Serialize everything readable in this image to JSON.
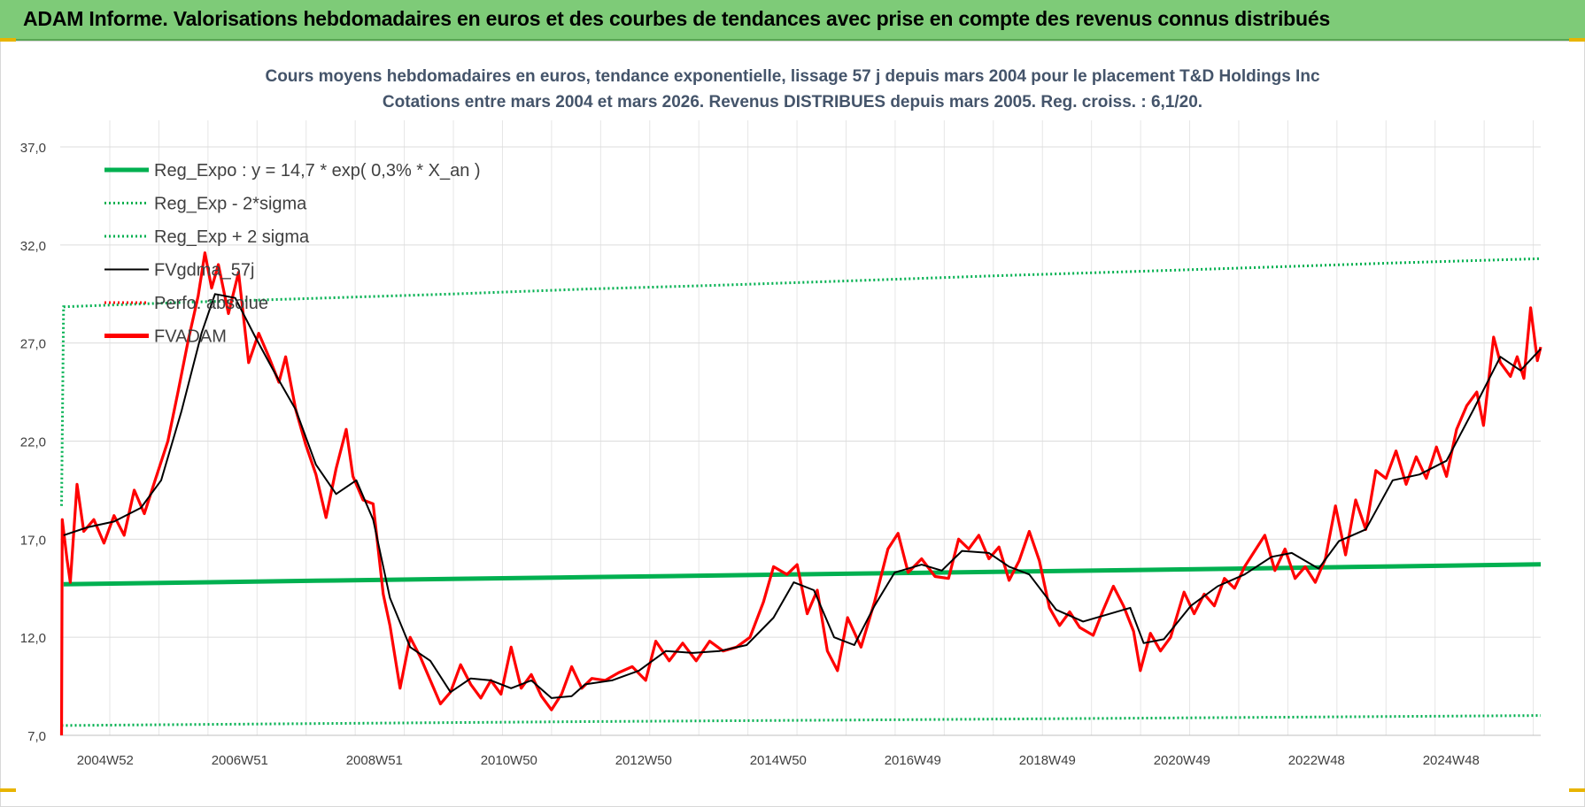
{
  "banner": {
    "title": "ADAM Informe. Valorisations hebdomadaires en euros et des courbes de tendances avec prise en compte des revenus connus distribués"
  },
  "chart_data": {
    "type": "line",
    "title": "Cours moyens hebdomadaires en euros, tendance exponentielle, lissage 57 j depuis mars 2004 pour le placement T&D Holdings Inc",
    "subtitle": "Cotations entre mars 2004 et mars 2026. Revenus DISTRIBUES depuis mars 2005. Reg. croiss. : 6,1/20.",
    "xlabel": "",
    "ylabel": "",
    "ylim": [
      7.0,
      37.0
    ],
    "y_ticks": [
      "7,0",
      "12,0",
      "17,0",
      "22,0",
      "27,0",
      "32,0",
      "37,0"
    ],
    "x_range": [
      2004.2,
      2026.2
    ],
    "x_ticks": [
      {
        "label": "2004W52",
        "x": 2005.0
      },
      {
        "label": "2006W51",
        "x": 2007.0
      },
      {
        "label": "2008W51",
        "x": 2009.0
      },
      {
        "label": "2010W50",
        "x": 2011.0
      },
      {
        "label": "2012W50",
        "x": 2013.0
      },
      {
        "label": "2014W50",
        "x": 2015.0
      },
      {
        "label": "2016W49",
        "x": 2017.0
      },
      {
        "label": "2018W49",
        "x": 2019.0
      },
      {
        "label": "2020W49",
        "x": 2021.0
      },
      {
        "label": "2022W48",
        "x": 2023.0
      },
      {
        "label": "2024W48",
        "x": 2025.0
      }
    ],
    "grid": true,
    "legend_position": "top-left",
    "series": [
      {
        "name": "Reg_Expo : y = 14,7 * exp( 0,3% *  X_an )",
        "style": "solid-thick",
        "color": "#00b050",
        "points": [
          [
            2004.25,
            14.7
          ],
          [
            2008,
            14.88
          ],
          [
            2012,
            15.06
          ],
          [
            2016,
            15.24
          ],
          [
            2020,
            15.42
          ],
          [
            2024,
            15.61
          ],
          [
            2026.2,
            15.72
          ]
        ]
      },
      {
        "name": "Reg_Exp - 2*sigma",
        "style": "dotted",
        "color": "#00b050",
        "points": [
          [
            2004.22,
            7.5
          ],
          [
            2008,
            7.6
          ],
          [
            2012,
            7.7
          ],
          [
            2016,
            7.78
          ],
          [
            2020,
            7.87
          ],
          [
            2024,
            7.96
          ],
          [
            2026.2,
            8.01
          ]
        ]
      },
      {
        "name": "Reg_Exp + 2 sigma",
        "style": "dotted",
        "color": "#00b050",
        "points": [
          [
            2004.22,
            18.7
          ],
          [
            2004.25,
            28.85
          ],
          [
            2006,
            29.07
          ],
          [
            2008,
            29.28
          ],
          [
            2010,
            29.5
          ],
          [
            2012,
            29.75
          ],
          [
            2014,
            29.95
          ],
          [
            2016,
            30.18
          ],
          [
            2018,
            30.42
          ],
          [
            2020,
            30.63
          ],
          [
            2022,
            30.85
          ],
          [
            2024,
            31.08
          ],
          [
            2026.2,
            31.3
          ]
        ]
      },
      {
        "name": "FVgdma_57j",
        "style": "solid",
        "color": "#000000",
        "points": [
          [
            2004.25,
            17.2
          ],
          [
            2004.6,
            17.6
          ],
          [
            2005.0,
            17.9
          ],
          [
            2005.4,
            18.6
          ],
          [
            2005.7,
            20.0
          ],
          [
            2006.0,
            23.5
          ],
          [
            2006.3,
            27.5
          ],
          [
            2006.5,
            29.5
          ],
          [
            2006.8,
            29.3
          ],
          [
            2007.1,
            27.3
          ],
          [
            2007.4,
            25.4
          ],
          [
            2007.7,
            23.6
          ],
          [
            2008.0,
            20.8
          ],
          [
            2008.3,
            19.3
          ],
          [
            2008.6,
            20.0
          ],
          [
            2008.85,
            18.0
          ],
          [
            2009.1,
            14.0
          ],
          [
            2009.4,
            11.5
          ],
          [
            2009.7,
            10.8
          ],
          [
            2010.0,
            9.2
          ],
          [
            2010.3,
            9.9
          ],
          [
            2010.6,
            9.8
          ],
          [
            2010.9,
            9.4
          ],
          [
            2011.2,
            9.8
          ],
          [
            2011.5,
            8.9
          ],
          [
            2011.8,
            9.0
          ],
          [
            2012.0,
            9.6
          ],
          [
            2012.4,
            9.8
          ],
          [
            2012.8,
            10.3
          ],
          [
            2013.2,
            11.3
          ],
          [
            2013.6,
            11.2
          ],
          [
            2014.0,
            11.3
          ],
          [
            2014.4,
            11.6
          ],
          [
            2014.8,
            13.0
          ],
          [
            2015.1,
            14.8
          ],
          [
            2015.4,
            14.4
          ],
          [
            2015.7,
            12.0
          ],
          [
            2016.0,
            11.6
          ],
          [
            2016.3,
            13.6
          ],
          [
            2016.6,
            15.3
          ],
          [
            2017.0,
            15.7
          ],
          [
            2017.3,
            15.4
          ],
          [
            2017.6,
            16.4
          ],
          [
            2018.0,
            16.3
          ],
          [
            2018.3,
            15.6
          ],
          [
            2018.6,
            15.2
          ],
          [
            2019.0,
            13.4
          ],
          [
            2019.4,
            12.8
          ],
          [
            2019.8,
            13.2
          ],
          [
            2020.1,
            13.5
          ],
          [
            2020.3,
            11.7
          ],
          [
            2020.6,
            11.9
          ],
          [
            2021.0,
            13.6
          ],
          [
            2021.4,
            14.6
          ],
          [
            2021.8,
            15.2
          ],
          [
            2022.2,
            16.1
          ],
          [
            2022.5,
            16.3
          ],
          [
            2022.9,
            15.5
          ],
          [
            2023.2,
            16.9
          ],
          [
            2023.6,
            17.5
          ],
          [
            2024.0,
            20.0
          ],
          [
            2024.4,
            20.3
          ],
          [
            2024.8,
            21.0
          ],
          [
            2025.2,
            23.6
          ],
          [
            2025.6,
            26.3
          ],
          [
            2025.9,
            25.6
          ],
          [
            2026.2,
            26.7
          ]
        ]
      },
      {
        "name": "Perfo. absolue",
        "style": "dotted",
        "color": "#ff0000",
        "points": []
      },
      {
        "name": "FVADAM",
        "style": "solid-thick",
        "color": "#ff0000",
        "points": [
          [
            2004.22,
            7.0
          ],
          [
            2004.23,
            18.0
          ],
          [
            2004.3,
            16.0
          ],
          [
            2004.35,
            14.8
          ],
          [
            2004.45,
            19.8
          ],
          [
            2004.55,
            17.4
          ],
          [
            2004.7,
            18.0
          ],
          [
            2004.85,
            16.8
          ],
          [
            2005.0,
            18.2
          ],
          [
            2005.15,
            17.2
          ],
          [
            2005.3,
            19.5
          ],
          [
            2005.45,
            18.3
          ],
          [
            2005.6,
            19.9
          ],
          [
            2005.8,
            22.0
          ],
          [
            2005.95,
            24.5
          ],
          [
            2006.1,
            27.1
          ],
          [
            2006.25,
            29.4
          ],
          [
            2006.35,
            31.6
          ],
          [
            2006.45,
            29.8
          ],
          [
            2006.55,
            31.0
          ],
          [
            2006.7,
            28.5
          ],
          [
            2006.85,
            30.6
          ],
          [
            2007.0,
            26.0
          ],
          [
            2007.15,
            27.5
          ],
          [
            2007.3,
            26.3
          ],
          [
            2007.45,
            25.0
          ],
          [
            2007.55,
            26.3
          ],
          [
            2007.7,
            23.6
          ],
          [
            2007.85,
            21.8
          ],
          [
            2008.0,
            20.3
          ],
          [
            2008.15,
            18.1
          ],
          [
            2008.3,
            20.6
          ],
          [
            2008.45,
            22.6
          ],
          [
            2008.55,
            20.2
          ],
          [
            2008.7,
            19.0
          ],
          [
            2008.85,
            18.8
          ],
          [
            2009.0,
            14.2
          ],
          [
            2009.1,
            12.6
          ],
          [
            2009.25,
            9.4
          ],
          [
            2009.4,
            12.0
          ],
          [
            2009.55,
            11.0
          ],
          [
            2009.7,
            9.8
          ],
          [
            2009.85,
            8.6
          ],
          [
            2010.0,
            9.2
          ],
          [
            2010.15,
            10.6
          ],
          [
            2010.3,
            9.6
          ],
          [
            2010.45,
            8.9
          ],
          [
            2010.6,
            9.8
          ],
          [
            2010.75,
            9.1
          ],
          [
            2010.9,
            11.5
          ],
          [
            2011.05,
            9.4
          ],
          [
            2011.2,
            10.1
          ],
          [
            2011.35,
            9.0
          ],
          [
            2011.5,
            8.3
          ],
          [
            2011.65,
            9.1
          ],
          [
            2011.8,
            10.5
          ],
          [
            2011.95,
            9.4
          ],
          [
            2012.1,
            9.9
          ],
          [
            2012.3,
            9.8
          ],
          [
            2012.5,
            10.2
          ],
          [
            2012.7,
            10.5
          ],
          [
            2012.9,
            9.8
          ],
          [
            2013.05,
            11.8
          ],
          [
            2013.25,
            10.8
          ],
          [
            2013.45,
            11.7
          ],
          [
            2013.65,
            10.8
          ],
          [
            2013.85,
            11.8
          ],
          [
            2014.05,
            11.3
          ],
          [
            2014.25,
            11.5
          ],
          [
            2014.45,
            12.0
          ],
          [
            2014.65,
            13.8
          ],
          [
            2014.8,
            15.6
          ],
          [
            2015.0,
            15.2
          ],
          [
            2015.15,
            15.7
          ],
          [
            2015.3,
            13.2
          ],
          [
            2015.45,
            14.4
          ],
          [
            2015.6,
            11.3
          ],
          [
            2015.75,
            10.3
          ],
          [
            2015.9,
            13.0
          ],
          [
            2016.1,
            11.5
          ],
          [
            2016.3,
            13.8
          ],
          [
            2016.5,
            16.5
          ],
          [
            2016.65,
            17.3
          ],
          [
            2016.8,
            15.3
          ],
          [
            2017.0,
            16.0
          ],
          [
            2017.2,
            15.1
          ],
          [
            2017.4,
            15.0
          ],
          [
            2017.55,
            17.0
          ],
          [
            2017.7,
            16.5
          ],
          [
            2017.85,
            17.2
          ],
          [
            2018.0,
            16.0
          ],
          [
            2018.15,
            16.6
          ],
          [
            2018.3,
            14.9
          ],
          [
            2018.45,
            15.9
          ],
          [
            2018.6,
            17.4
          ],
          [
            2018.75,
            15.9
          ],
          [
            2018.9,
            13.5
          ],
          [
            2019.05,
            12.6
          ],
          [
            2019.2,
            13.3
          ],
          [
            2019.35,
            12.5
          ],
          [
            2019.55,
            12.1
          ],
          [
            2019.7,
            13.4
          ],
          [
            2019.85,
            14.6
          ],
          [
            2020.0,
            13.6
          ],
          [
            2020.15,
            12.3
          ],
          [
            2020.25,
            10.3
          ],
          [
            2020.4,
            12.2
          ],
          [
            2020.55,
            11.3
          ],
          [
            2020.7,
            12.0
          ],
          [
            2020.9,
            14.3
          ],
          [
            2021.05,
            13.2
          ],
          [
            2021.2,
            14.2
          ],
          [
            2021.35,
            13.6
          ],
          [
            2021.5,
            15.0
          ],
          [
            2021.65,
            14.5
          ],
          [
            2021.8,
            15.6
          ],
          [
            2021.95,
            16.4
          ],
          [
            2022.1,
            17.2
          ],
          [
            2022.25,
            15.4
          ],
          [
            2022.4,
            16.5
          ],
          [
            2022.55,
            15.0
          ],
          [
            2022.7,
            15.6
          ],
          [
            2022.85,
            14.8
          ],
          [
            2023.0,
            16.0
          ],
          [
            2023.15,
            18.7
          ],
          [
            2023.3,
            16.2
          ],
          [
            2023.45,
            19.0
          ],
          [
            2023.6,
            17.5
          ],
          [
            2023.75,
            20.5
          ],
          [
            2023.9,
            20.1
          ],
          [
            2024.05,
            21.5
          ],
          [
            2024.2,
            19.8
          ],
          [
            2024.35,
            21.2
          ],
          [
            2024.5,
            20.1
          ],
          [
            2024.65,
            21.7
          ],
          [
            2024.8,
            20.2
          ],
          [
            2024.95,
            22.6
          ],
          [
            2025.1,
            23.8
          ],
          [
            2025.25,
            24.5
          ],
          [
            2025.35,
            22.8
          ],
          [
            2025.5,
            27.3
          ],
          [
            2025.6,
            26.0
          ],
          [
            2025.75,
            25.3
          ],
          [
            2025.85,
            26.3
          ],
          [
            2025.95,
            25.2
          ],
          [
            2026.05,
            28.8
          ],
          [
            2026.15,
            26.1
          ],
          [
            2026.2,
            26.8
          ]
        ]
      }
    ]
  }
}
